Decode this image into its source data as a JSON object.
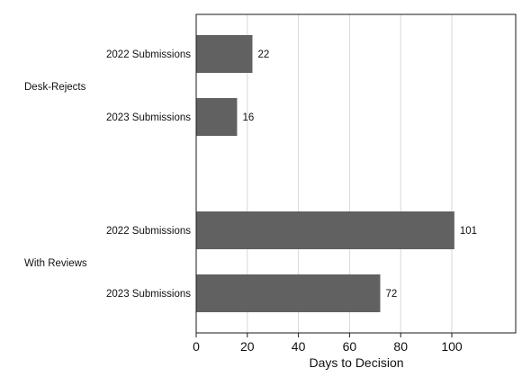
{
  "chart_data": {
    "type": "bar",
    "orientation": "horizontal",
    "groups": [
      {
        "label": "Desk-Rejects",
        "bars": [
          {
            "label": "2022 Submissions",
            "value": 22
          },
          {
            "label": "2023 Submissions",
            "value": 16
          }
        ]
      },
      {
        "label": "With Reviews",
        "bars": [
          {
            "label": "2022 Submissions",
            "value": 101
          },
          {
            "label": "2023 Submissions",
            "value": 72
          }
        ]
      }
    ],
    "xlabel": "Days to Decision",
    "xlim": [
      0,
      125
    ],
    "xticks": [
      0,
      20,
      40,
      60,
      80,
      100
    ],
    "grid": true,
    "bar_color": "#616161",
    "show_value_labels": true
  }
}
